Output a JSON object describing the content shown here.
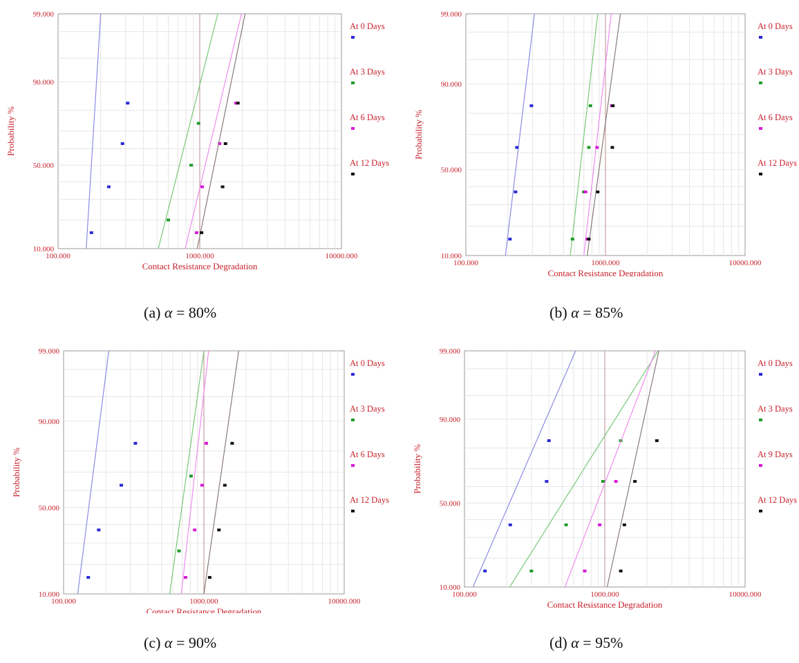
{
  "figure_colors": {
    "label_red": "#c8202a",
    "grid": "#e6e6e6",
    "axis": "#9a9a9a",
    "series": [
      "#2a2ad4",
      "#1f9a2a",
      "#d61ad6",
      "#111111"
    ],
    "fit_lines": [
      "#8a8ae6",
      "#78c878",
      "#f08cf0",
      "#8a7a7a"
    ],
    "vline": "#c9a0a0"
  },
  "chart_data": [
    {
      "type": "scatter",
      "caption": {
        "prefix": "(a)",
        "symbol": "α",
        "rest": "= 80%"
      },
      "xscale": "log",
      "yscale": "probability",
      "xlim": [
        100,
        10000
      ],
      "ylim": [
        10,
        99
      ],
      "xticks": [
        "100.000",
        "1000.000",
        "10000.000"
      ],
      "yticks": [
        "99.000",
        "90.000",
        "50.000",
        "10.000"
      ],
      "xlabel": "Contact Resistance Degradation",
      "ylabel": "Probability %",
      "legend_position": "right",
      "grid": true,
      "series": [
        {
          "name": "At 0 Days",
          "points": [
            {
              "x": 172,
              "y": 15
            },
            {
              "x": 228,
              "y": 37
            },
            {
              "x": 285,
              "y": 63
            },
            {
              "x": 310,
              "y": 83
            }
          ],
          "fit": [
            {
              "x": 158,
              "y": 10
            },
            {
              "x": 200,
              "y": 99
            }
          ]
        },
        {
          "name": "At 3 Days",
          "points": [
            {
              "x": 600,
              "y": 20
            },
            {
              "x": 870,
              "y": 50
            },
            {
              "x": 980,
              "y": 74
            }
          ],
          "fit": [
            {
              "x": 510,
              "y": 10
            },
            {
              "x": 1340,
              "y": 99
            }
          ]
        },
        {
          "name": "At 6 Days",
          "points": [
            {
              "x": 950,
              "y": 15
            },
            {
              "x": 1040,
              "y": 37
            },
            {
              "x": 1380,
              "y": 63
            },
            {
              "x": 1800,
              "y": 83
            }
          ],
          "fit": [
            {
              "x": 790,
              "y": 10
            },
            {
              "x": 1970,
              "y": 99
            }
          ]
        },
        {
          "name": "At 12 Days",
          "points": [
            {
              "x": 1030,
              "y": 15
            },
            {
              "x": 1450,
              "y": 37
            },
            {
              "x": 1520,
              "y": 63
            },
            {
              "x": 1860,
              "y": 83
            }
          ],
          "fit": [
            {
              "x": 960,
              "y": 10
            },
            {
              "x": 2090,
              "y": 99
            }
          ]
        }
      ],
      "vline_x": 1000
    },
    {
      "type": "scatter",
      "caption": {
        "prefix": "(b)",
        "symbol": "α",
        "rest": "= 85%"
      },
      "xscale": "log",
      "yscale": "probability",
      "xlim": [
        100,
        10000
      ],
      "ylim": [
        10,
        99
      ],
      "xticks": [
        "100.000",
        "1000.000",
        "10000.000"
      ],
      "yticks": [
        "99.000",
        "90.000",
        "50.000",
        "10.000"
      ],
      "xlabel": "Contact Resistance Degradation",
      "ylabel": "Probability %",
      "legend_position": "right",
      "grid": true,
      "series": [
        {
          "name": "At 0 Days",
          "points": [
            {
              "x": 207,
              "y": 15
            },
            {
              "x": 227,
              "y": 37
            },
            {
              "x": 232,
              "y": 63
            },
            {
              "x": 295,
              "y": 83
            }
          ],
          "fit": [
            {
              "x": 192,
              "y": 10
            },
            {
              "x": 310,
              "y": 99
            }
          ]
        },
        {
          "name": "At 3 Days",
          "points": [
            {
              "x": 580,
              "y": 15
            },
            {
              "x": 700,
              "y": 37
            },
            {
              "x": 760,
              "y": 63
            },
            {
              "x": 780,
              "y": 83
            }
          ],
          "fit": [
            {
              "x": 560,
              "y": 10
            },
            {
              "x": 880,
              "y": 99
            }
          ]
        },
        {
          "name": "At 6 Days",
          "points": [
            {
              "x": 740,
              "y": 15
            },
            {
              "x": 720,
              "y": 37
            },
            {
              "x": 870,
              "y": 63
            },
            {
              "x": 1110,
              "y": 83
            }
          ],
          "fit": [
            {
              "x": 700,
              "y": 10
            },
            {
              "x": 1100,
              "y": 99
            }
          ]
        },
        {
          "name": "At 12 Days",
          "points": [
            {
              "x": 760,
              "y": 15
            },
            {
              "x": 880,
              "y": 37
            },
            {
              "x": 1120,
              "y": 63
            },
            {
              "x": 1130,
              "y": 83
            }
          ],
          "fit": [
            {
              "x": 740,
              "y": 10
            },
            {
              "x": 1280,
              "y": 99
            }
          ]
        }
      ],
      "vline_x": 1000
    },
    {
      "type": "scatter",
      "caption": {
        "prefix": "(c)",
        "symbol": "α",
        "rest": "= 90%"
      },
      "xscale": "log",
      "yscale": "probability",
      "xlim": [
        100,
        10000
      ],
      "ylim": [
        10,
        99
      ],
      "xticks": [
        "100.000",
        "1000.000",
        "10000.000"
      ],
      "yticks": [
        "99.000",
        "90.000",
        "50.000",
        "10.000"
      ],
      "xlabel": "Contact Resistance Degradation",
      "ylabel": "Probability %",
      "legend_position": "right",
      "grid": true,
      "series": [
        {
          "name": "At 0 Days",
          "points": [
            {
              "x": 150,
              "y": 15
            },
            {
              "x": 178,
              "y": 37
            },
            {
              "x": 258,
              "y": 63
            },
            {
              "x": 325,
              "y": 83
            }
          ],
          "fit": [
            {
              "x": 126,
              "y": 10
            },
            {
              "x": 210,
              "y": 99
            }
          ]
        },
        {
          "name": "At 3 Days",
          "points": [
            {
              "x": 665,
              "y": 26
            },
            {
              "x": 810,
              "y": 68
            }
          ],
          "fit": [
            {
              "x": 570,
              "y": 10
            },
            {
              "x": 1000,
              "y": 99
            }
          ]
        },
        {
          "name": "At 6 Days",
          "points": [
            {
              "x": 740,
              "y": 15
            },
            {
              "x": 860,
              "y": 37
            },
            {
              "x": 970,
              "y": 63
            },
            {
              "x": 1040,
              "y": 83
            }
          ],
          "fit": [
            {
              "x": 690,
              "y": 10
            },
            {
              "x": 1080,
              "y": 99
            }
          ]
        },
        {
          "name": "At 12 Days",
          "points": [
            {
              "x": 1100,
              "y": 15
            },
            {
              "x": 1280,
              "y": 37
            },
            {
              "x": 1410,
              "y": 63
            },
            {
              "x": 1590,
              "y": 83
            }
          ],
          "fit": [
            {
              "x": 1000,
              "y": 10
            },
            {
              "x": 1770,
              "y": 99
            }
          ]
        }
      ],
      "vline_x": 1000
    },
    {
      "type": "scatter",
      "caption": {
        "prefix": "(d)",
        "symbol": "α",
        "rest": "= 95%"
      },
      "xscale": "log",
      "yscale": "probability",
      "xlim": [
        100,
        10000
      ],
      "ylim": [
        10,
        99
      ],
      "xticks": [
        "100.000",
        "1000.000",
        "10000.000"
      ],
      "yticks": [
        "99.000",
        "90.000",
        "50.000",
        "10.000"
      ],
      "xlabel": "Contact Resistance Degradation",
      "ylabel": "Probability %",
      "legend_position": "right",
      "grid": true,
      "series": [
        {
          "name": "At 0 Days",
          "points": [
            {
              "x": 140,
              "y": 15
            },
            {
              "x": 212,
              "y": 37
            },
            {
              "x": 385,
              "y": 63
            },
            {
              "x": 400,
              "y": 83
            }
          ],
          "fit": [
            {
              "x": 115,
              "y": 10
            },
            {
              "x": 620,
              "y": 99
            }
          ]
        },
        {
          "name": "At 3 Days",
          "points": [
            {
              "x": 300,
              "y": 15
            },
            {
              "x": 530,
              "y": 37
            },
            {
              "x": 970,
              "y": 63
            },
            {
              "x": 1300,
              "y": 83
            }
          ],
          "fit": [
            {
              "x": 210,
              "y": 10
            },
            {
              "x": 2400,
              "y": 99
            }
          ]
        },
        {
          "name": "At 9 Days",
          "points": [
            {
              "x": 720,
              "y": 15
            },
            {
              "x": 920,
              "y": 37
            },
            {
              "x": 1200,
              "y": 63
            }
          ],
          "fit": [
            {
              "x": 520,
              "y": 10
            },
            {
              "x": 2300,
              "y": 99
            }
          ]
        },
        {
          "name": "At 12 Days",
          "points": [
            {
              "x": 1300,
              "y": 15
            },
            {
              "x": 1380,
              "y": 37
            },
            {
              "x": 1640,
              "y": 63
            },
            {
              "x": 2350,
              "y": 83
            }
          ],
          "fit": [
            {
              "x": 1040,
              "y": 10
            },
            {
              "x": 2430,
              "y": 99
            }
          ]
        }
      ],
      "vline_x": 1000
    }
  ]
}
